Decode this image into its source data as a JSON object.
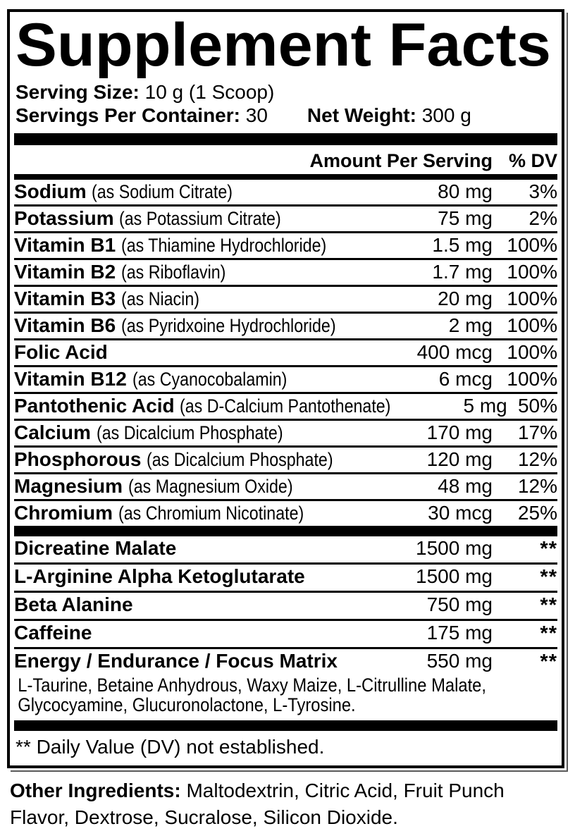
{
  "title": "Supplement Facts",
  "serving": {
    "size_label": "Serving Size:",
    "size_value": " 10 g (1 Scoop)",
    "per_container_label": "Servings Per Container:",
    "per_container_value": " 30",
    "net_weight_label": "Net Weight:",
    "net_weight_value": " 300 g"
  },
  "header": {
    "amount_label": "Amount Per Serving",
    "dv_label": "% DV"
  },
  "nutrients": [
    {
      "name": "Sodium",
      "detail": "(as Sodium Citrate)",
      "amount": "80 mg",
      "dv": "3%"
    },
    {
      "name": "Potassium",
      "detail": "(as Potassium Citrate)",
      "amount": "75 mg",
      "dv": "2%"
    },
    {
      "name": "Vitamin B1",
      "detail": "(as Thiamine Hydrochloride)",
      "amount": "1.5 mg",
      "dv": "100%"
    },
    {
      "name": "Vitamin B2",
      "detail": "(as Riboflavin)",
      "amount": "1.7 mg",
      "dv": "100%"
    },
    {
      "name": "Vitamin B3",
      "detail": "(as Niacin)",
      "amount": "20 mg",
      "dv": "100%"
    },
    {
      "name": "Vitamin B6",
      "detail": "(as Pyridxoine Hydrochloride)",
      "amount": "2 mg",
      "dv": "100%"
    },
    {
      "name": "Folic Acid",
      "detail": "",
      "amount": "400 mcg",
      "dv": "100%"
    },
    {
      "name": "Vitamin B12",
      "detail": "(as Cyanocobalamin)",
      "amount": "6 mcg",
      "dv": "100%"
    },
    {
      "name": "Pantothenic Acid",
      "detail": "(as D-Calcium Pantothenate)",
      "amount": "5 mg",
      "dv": "50%"
    },
    {
      "name": "Calcium",
      "detail": "(as Dicalcium Phosphate)",
      "amount": "170 mg",
      "dv": "17%"
    },
    {
      "name": "Phosphorous",
      "detail": "(as Dicalcium Phosphate)",
      "amount": "120 mg",
      "dv": "12%"
    },
    {
      "name": "Magnesium",
      "detail": "(as Magnesium Oxide)",
      "amount": "48 mg",
      "dv": "12%"
    },
    {
      "name": "Chromium",
      "detail": "(as Chromium Nicotinate)",
      "amount": "30 mcg",
      "dv": "25%"
    }
  ],
  "performance": [
    {
      "name": "Dicreatine Malate",
      "detail": "",
      "amount": "1500 mg",
      "dv": "**"
    },
    {
      "name": "L-Arginine Alpha Ketoglutarate",
      "detail": "",
      "amount": "1500 mg",
      "dv": "**"
    },
    {
      "name": "Beta Alanine",
      "detail": "",
      "amount": "750 mg",
      "dv": "**"
    },
    {
      "name": "Caffeine",
      "detail": "",
      "amount": "175 mg",
      "dv": "**"
    },
    {
      "name": "Energy / Endurance / Focus Matrix",
      "detail": "",
      "amount": "550 mg",
      "dv": "**",
      "sub": [
        "L-Taurine, Betaine Anhydrous, Waxy Maize, L-Citrulline Malate,",
        "Glycocyamine, Glucuronolactone, L-Tyrosine."
      ]
    }
  ],
  "footnote": "** Daily Value (DV) not established.",
  "other_ingredients": {
    "label": "Other Ingredients:",
    "text": " Maltodextrin, Citric Acid, Fruit Punch Flavor, Dextrose, Sucralose, Silicon Dioxide."
  },
  "colors": {
    "ink": "#000000",
    "paper": "#ffffff"
  }
}
